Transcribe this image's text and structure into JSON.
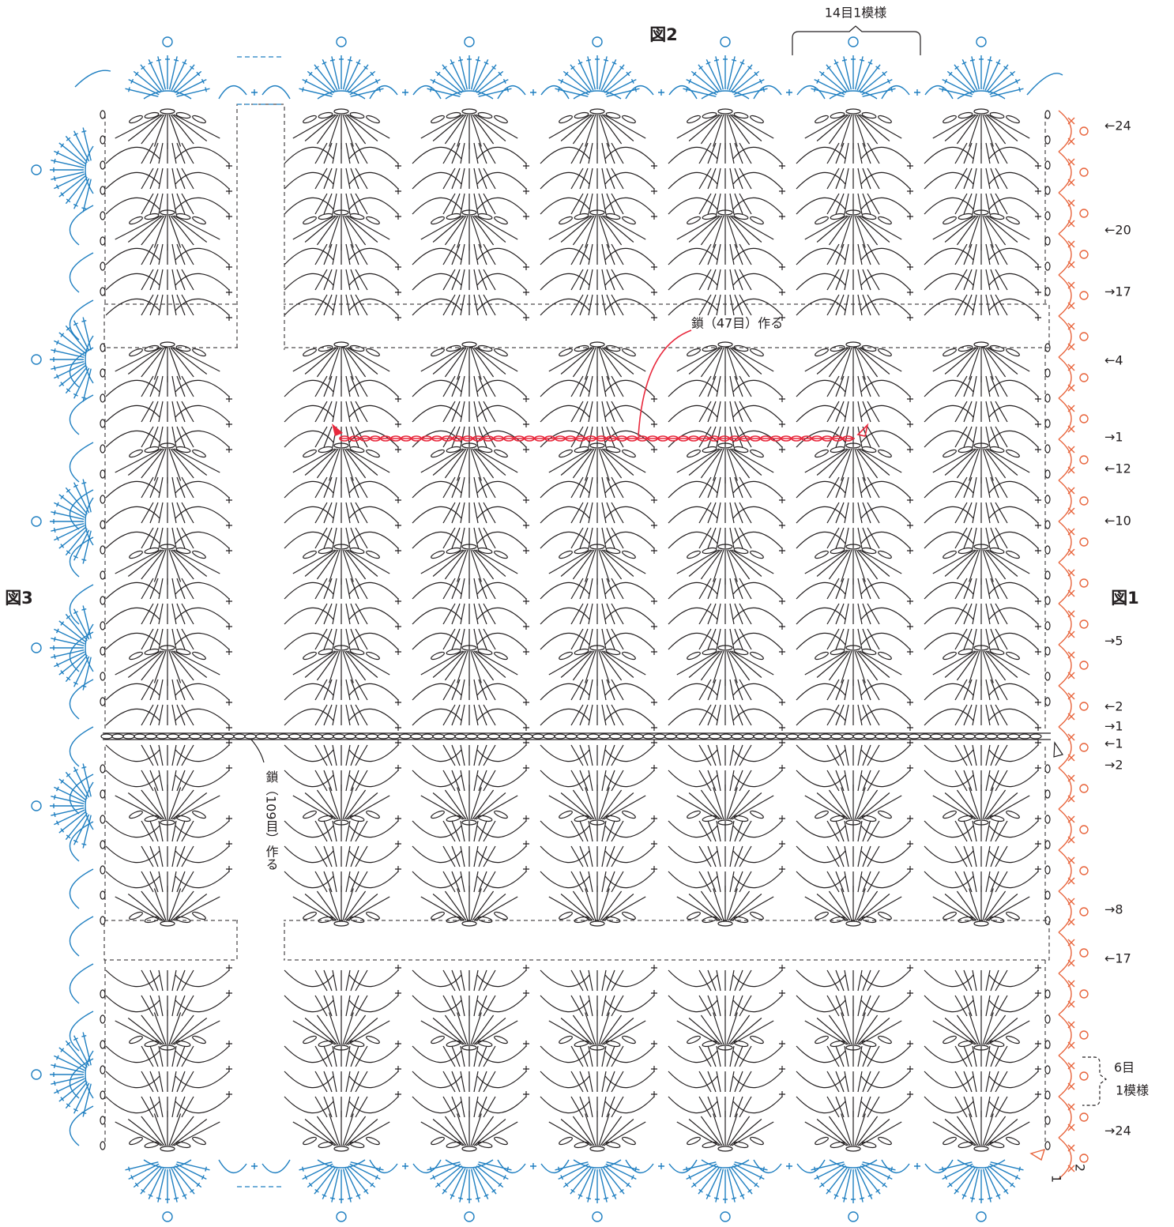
{
  "figures": {
    "top": "図2",
    "left": "図3",
    "right": "図1"
  },
  "repeat_top": "14目1模様",
  "repeat_right": {
    "line1": "6目",
    "line2": "1模様"
  },
  "chain_top": "鎖（47目）作る",
  "chain_left": "鎖（109目）作る",
  "row_labels": [
    "←24",
    "←20",
    "→17",
    "←4",
    "→1",
    "←12",
    "←10",
    "→5",
    "←2",
    "→1",
    "←1",
    "→2",
    "→8",
    "←17",
    "→24"
  ],
  "corner_labels": [
    "1",
    "2"
  ]
}
